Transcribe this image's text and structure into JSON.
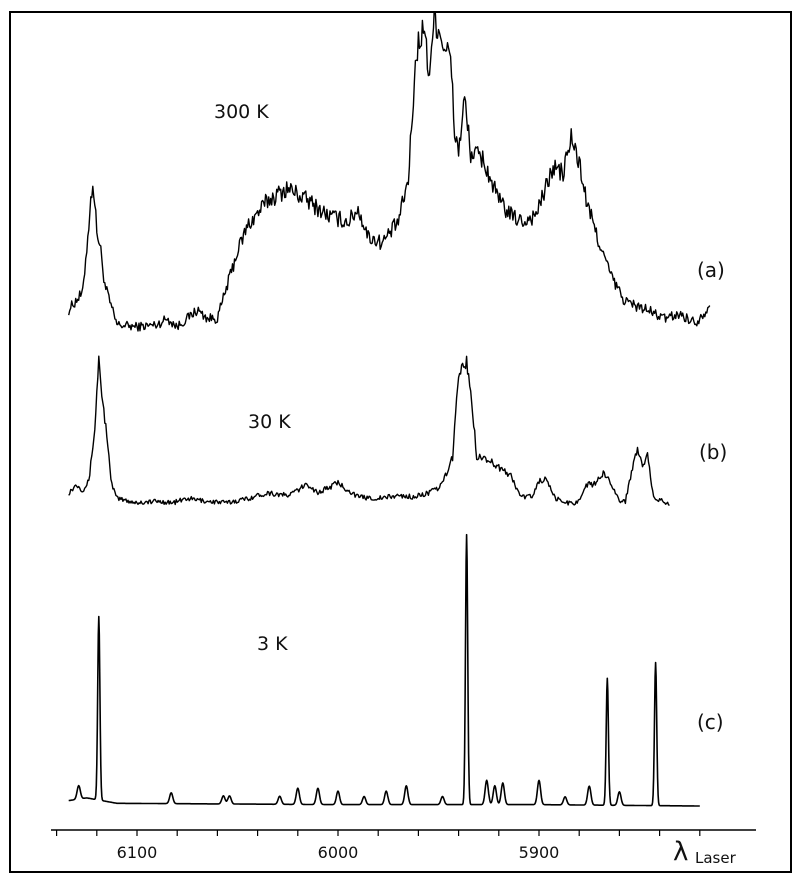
{
  "chart_data": {
    "type": "line",
    "title": "",
    "xlabel": "λ Laser",
    "xlabel_symbol": "λ",
    "xlabel_subscript": "Laser",
    "x_direction": "descending",
    "xlim": [
      6140,
      5810
    ],
    "xticks": [
      6100,
      6000,
      5900
    ],
    "grid": false,
    "legend": "none",
    "series": [
      {
        "name": "300 K",
        "panel_label": "(a)",
        "noise": 0.06,
        "points": [
          [
            6134,
            0.1
          ],
          [
            6130,
            0.15
          ],
          [
            6127,
            0.18
          ],
          [
            6125,
            0.4
          ],
          [
            6122,
            0.72
          ],
          [
            6120,
            0.48
          ],
          [
            6118,
            0.38
          ],
          [
            6116,
            0.22
          ],
          [
            6113,
            0.12
          ],
          [
            6110,
            0.03
          ],
          [
            6100,
            0.02
          ],
          [
            6090,
            0.03
          ],
          [
            6085,
            0.06
          ],
          [
            6080,
            0.02
          ],
          [
            6070,
            0.1
          ],
          [
            6065,
            0.06
          ],
          [
            6060,
            0.06
          ],
          [
            6055,
            0.22
          ],
          [
            6050,
            0.38
          ],
          [
            6045,
            0.5
          ],
          [
            6035,
            0.62
          ],
          [
            6025,
            0.68
          ],
          [
            6015,
            0.62
          ],
          [
            6005,
            0.55
          ],
          [
            5995,
            0.52
          ],
          [
            5990,
            0.58
          ],
          [
            5985,
            0.45
          ],
          [
            5978,
            0.42
          ],
          [
            5970,
            0.52
          ],
          [
            5965,
            0.72
          ],
          [
            5962,
            1.2
          ],
          [
            5960,
            1.38
          ],
          [
            5957,
            1.45
          ],
          [
            5955,
            1.22
          ],
          [
            5952,
            1.5
          ],
          [
            5948,
            1.38
          ],
          [
            5944,
            1.3
          ],
          [
            5942,
            0.95
          ],
          [
            5940,
            0.86
          ],
          [
            5937,
            1.1
          ],
          [
            5934,
            0.85
          ],
          [
            5928,
            0.82
          ],
          [
            5920,
            0.62
          ],
          [
            5914,
            0.55
          ],
          [
            5908,
            0.52
          ],
          [
            5902,
            0.55
          ],
          [
            5898,
            0.64
          ],
          [
            5893,
            0.78
          ],
          [
            5888,
            0.75
          ],
          [
            5884,
            0.92
          ],
          [
            5880,
            0.8
          ],
          [
            5876,
            0.6
          ],
          [
            5870,
            0.42
          ],
          [
            5864,
            0.26
          ],
          [
            5858,
            0.15
          ],
          [
            5852,
            0.12
          ],
          [
            5846,
            0.1
          ],
          [
            5838,
            0.06
          ],
          [
            5830,
            0.08
          ],
          [
            5822,
            0.04
          ],
          [
            5815,
            0.12
          ]
        ]
      },
      {
        "name": "30 K",
        "panel_label": "(b)",
        "noise": 0.045,
        "points": [
          [
            6134,
            0.1
          ],
          [
            6130,
            0.16
          ],
          [
            6127,
            0.12
          ],
          [
            6124,
            0.18
          ],
          [
            6121,
            0.55
          ],
          [
            6119,
            1.05
          ],
          [
            6117,
            0.72
          ],
          [
            6115,
            0.52
          ],
          [
            6113,
            0.18
          ],
          [
            6110,
            0.06
          ],
          [
            6100,
            0.03
          ],
          [
            6090,
            0.04
          ],
          [
            6082,
            0.03
          ],
          [
            6075,
            0.06
          ],
          [
            6065,
            0.04
          ],
          [
            6055,
            0.03
          ],
          [
            6045,
            0.06
          ],
          [
            6035,
            0.1
          ],
          [
            6025,
            0.08
          ],
          [
            6020,
            0.12
          ],
          [
            6015,
            0.16
          ],
          [
            6010,
            0.1
          ],
          [
            6000,
            0.17
          ],
          [
            5990,
            0.07
          ],
          [
            5980,
            0.06
          ],
          [
            5970,
            0.08
          ],
          [
            5962,
            0.07
          ],
          [
            5955,
            0.1
          ],
          [
            5950,
            0.13
          ],
          [
            5947,
            0.2
          ],
          [
            5943,
            0.35
          ],
          [
            5940,
            0.95
          ],
          [
            5938,
            0.98
          ],
          [
            5936,
            1.02
          ],
          [
            5934,
            0.82
          ],
          [
            5931,
            0.36
          ],
          [
            5926,
            0.34
          ],
          [
            5920,
            0.28
          ],
          [
            5914,
            0.22
          ],
          [
            5909,
            0.07
          ],
          [
            5903,
            0.08
          ],
          [
            5900,
            0.18
          ],
          [
            5897,
            0.2
          ],
          [
            5892,
            0.06
          ],
          [
            5886,
            0.03
          ],
          [
            5881,
            0.03
          ],
          [
            5876,
            0.16
          ],
          [
            5872,
            0.16
          ],
          [
            5868,
            0.24
          ],
          [
            5864,
            0.17
          ],
          [
            5860,
            0.04
          ],
          [
            5857,
            0.04
          ],
          [
            5854,
            0.25
          ],
          [
            5851,
            0.42
          ],
          [
            5848,
            0.28
          ],
          [
            5846,
            0.36
          ],
          [
            5843,
            0.06
          ],
          [
            5838,
            0.04
          ],
          [
            5835,
            0.01
          ]
        ]
      },
      {
        "name": "3 K",
        "panel_label": "(c)",
        "baseline": [
          [
            6134,
            0.02
          ],
          [
            6125,
            0.03
          ],
          [
            6110,
            0.01
          ],
          [
            6000,
            0.005
          ],
          [
            5900,
            0.005
          ],
          [
            5820,
            0.0
          ]
        ],
        "peaks": [
          {
            "x": 6129,
            "h": 0.05
          },
          {
            "x": 6119,
            "h": 0.68
          },
          {
            "x": 6083,
            "h": 0.04
          },
          {
            "x": 6057,
            "h": 0.03
          },
          {
            "x": 6054,
            "h": 0.03
          },
          {
            "x": 6029,
            "h": 0.03
          },
          {
            "x": 6020,
            "h": 0.06
          },
          {
            "x": 6010,
            "h": 0.06
          },
          {
            "x": 6000,
            "h": 0.05
          },
          {
            "x": 5987,
            "h": 0.03
          },
          {
            "x": 5976,
            "h": 0.05
          },
          {
            "x": 5966,
            "h": 0.07
          },
          {
            "x": 5948,
            "h": 0.03
          },
          {
            "x": 5936,
            "h": 1.0
          },
          {
            "x": 5926,
            "h": 0.09
          },
          {
            "x": 5922,
            "h": 0.07
          },
          {
            "x": 5918,
            "h": 0.08
          },
          {
            "x": 5900,
            "h": 0.09
          },
          {
            "x": 5887,
            "h": 0.03
          },
          {
            "x": 5875,
            "h": 0.07
          },
          {
            "x": 5866,
            "h": 0.47
          },
          {
            "x": 5860,
            "h": 0.05
          },
          {
            "x": 5842,
            "h": 0.53
          }
        ]
      }
    ]
  }
}
